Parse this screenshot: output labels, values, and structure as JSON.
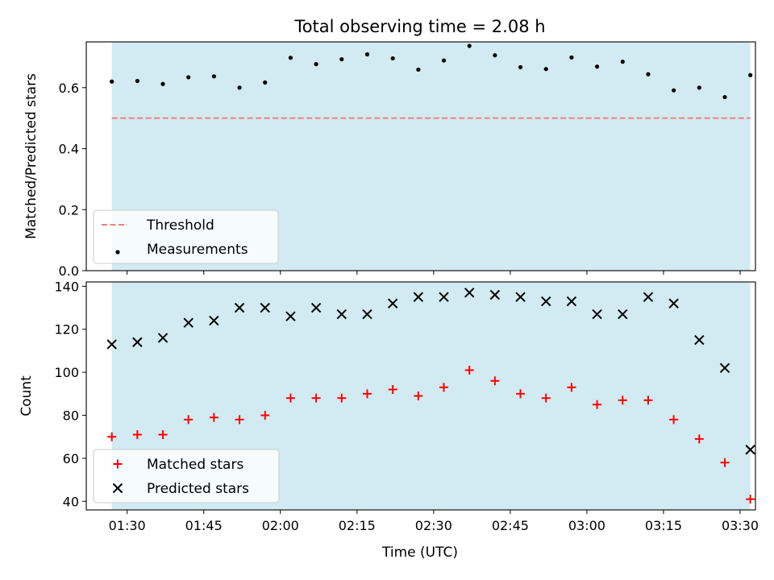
{
  "chart_data": [
    {
      "type": "scatter",
      "title": "Total observing time = 2.08 h",
      "xlabel": "",
      "ylabel": "Matched/Predicted stars",
      "x_unit": "time_utc",
      "xlim": [
        "01:22",
        "03:33"
      ],
      "ylim": [
        0,
        0.75
      ],
      "yticks": [
        0.0,
        0.2,
        0.4,
        0.6
      ],
      "yticklabels": [
        "0.0",
        "0.2",
        "0.4",
        "0.6"
      ],
      "observing_window": [
        "01:27",
        "03:32"
      ],
      "grid": false,
      "legend_position": "lower-left",
      "threshold": {
        "name": "Threshold",
        "y": 0.5,
        "color": "#f08080",
        "style": "dashed"
      },
      "series": [
        {
          "name": "Measurements",
          "marker": "dot",
          "color": "#000000",
          "x": [
            "01:27",
            "01:32",
            "01:37",
            "01:42",
            "01:47",
            "01:52",
            "01:57",
            "02:02",
            "02:07",
            "02:12",
            "02:17",
            "02:22",
            "02:27",
            "02:32",
            "02:37",
            "02:42",
            "02:47",
            "02:52",
            "02:57",
            "03:02",
            "03:07",
            "03:12",
            "03:17",
            "03:22",
            "03:27",
            "03:32"
          ],
          "y": [
            0.62,
            0.622,
            0.612,
            0.634,
            0.637,
            0.6,
            0.617,
            0.698,
            0.677,
            0.693,
            0.709,
            0.696,
            0.659,
            0.689,
            0.737,
            0.706,
            0.667,
            0.661,
            0.699,
            0.669,
            0.685,
            0.644,
            0.591,
            0.6,
            0.569,
            0.641
          ]
        }
      ]
    },
    {
      "type": "scatter",
      "title": "",
      "xlabel": "Time (UTC)",
      "ylabel": "Count",
      "x_unit": "time_utc",
      "xlim": [
        "01:22",
        "03:33"
      ],
      "ylim": [
        36,
        142
      ],
      "xticks": [
        "01:30",
        "01:45",
        "02:00",
        "02:15",
        "02:30",
        "02:45",
        "03:00",
        "03:15",
        "03:30"
      ],
      "yticks": [
        40,
        60,
        80,
        100,
        120,
        140
      ],
      "yticklabels": [
        "40",
        "60",
        "80",
        "100",
        "120",
        "140"
      ],
      "observing_window": [
        "01:27",
        "03:32"
      ],
      "grid": false,
      "legend_position": "lower-left",
      "series": [
        {
          "name": "Matched stars",
          "marker": "plus",
          "color": "#ff0000",
          "x": [
            "01:27",
            "01:32",
            "01:37",
            "01:42",
            "01:47",
            "01:52",
            "01:57",
            "02:02",
            "02:07",
            "02:12",
            "02:17",
            "02:22",
            "02:27",
            "02:32",
            "02:37",
            "02:42",
            "02:47",
            "02:52",
            "02:57",
            "03:02",
            "03:07",
            "03:12",
            "03:17",
            "03:22",
            "03:27",
            "03:32"
          ],
          "y": [
            70,
            71,
            71,
            78,
            79,
            78,
            80,
            88,
            88,
            88,
            90,
            92,
            89,
            93,
            101,
            96,
            90,
            88,
            93,
            85,
            87,
            87,
            78,
            69,
            58,
            41
          ]
        },
        {
          "name": "Predicted stars",
          "marker": "x",
          "color": "#000000",
          "x": [
            "01:27",
            "01:32",
            "01:37",
            "01:42",
            "01:47",
            "01:52",
            "01:57",
            "02:02",
            "02:07",
            "02:12",
            "02:17",
            "02:22",
            "02:27",
            "02:32",
            "02:37",
            "02:42",
            "02:47",
            "02:52",
            "02:57",
            "03:02",
            "03:07",
            "03:12",
            "03:17",
            "03:22",
            "03:27",
            "03:32"
          ],
          "y": [
            113,
            114,
            116,
            123,
            124,
            130,
            130,
            126,
            130,
            127,
            127,
            132,
            135,
            135,
            137,
            136,
            135,
            133,
            133,
            127,
            127,
            135,
            132,
            115,
            102,
            64
          ]
        }
      ]
    }
  ],
  "colors": {
    "observing_window": "#add8e6",
    "threshold": "#f08080"
  }
}
